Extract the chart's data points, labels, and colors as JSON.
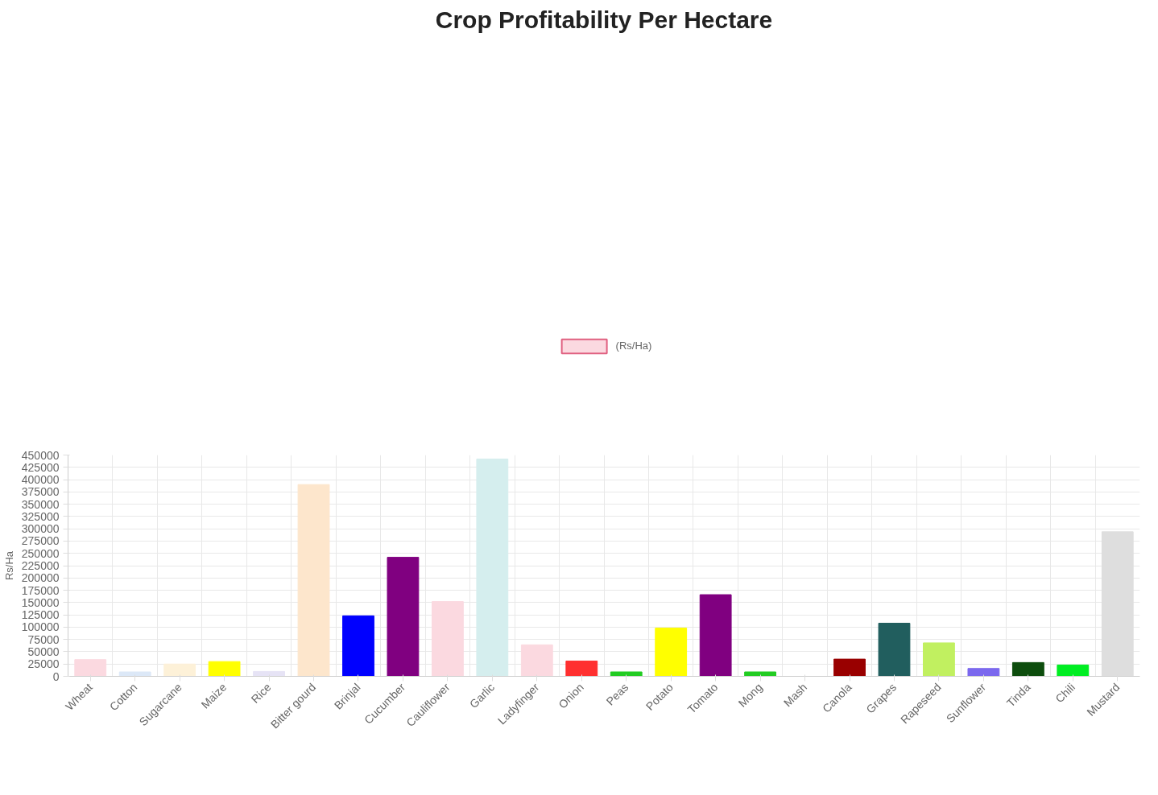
{
  "chart_data": {
    "type": "bar",
    "title": "Crop Profitability Per Hectare",
    "ylabel": "Rs/Ha",
    "categories": [
      "Wheat",
      "Cotton",
      "Sugarcane",
      "Maize",
      "Rice",
      "Bitter gourd",
      "Brinjal",
      "Cucumber",
      "Cauliflower",
      "Garlic",
      "Ladyfinger",
      "Onion",
      "Peas",
      "Potato",
      "Tomato",
      "Mong",
      "Mash",
      "Canola",
      "Grapes",
      "Rapeseed",
      "Sunflower",
      "Tinda",
      "Chili",
      "Mustard"
    ],
    "series": [
      {
        "name": "(Rs/Ha)",
        "values": [
          34000,
          9000,
          25000,
          30000,
          10000,
          390000,
          123000,
          242000,
          152000,
          442000,
          64000,
          31000,
          9000,
          98000,
          166000,
          9000,
          0,
          35000,
          108000,
          68000,
          16000,
          28000,
          23000,
          294000
        ],
        "colors": [
          "#fbd9e0",
          "#dce8f7",
          "#fdf1d8",
          "#ffff00",
          "#e6e3f5",
          "#fde6cc",
          "#0000ff",
          "#800080",
          "#fbd9e0",
          "#d5eeee",
          "#fbd9e0",
          "#ff3030",
          "#22cc22",
          "#ffff00",
          "#800080",
          "#22cc22",
          "#22cc22",
          "#990000",
          "#215e5e",
          "#c1f060",
          "#7b68ee",
          "#0d4d0d",
          "#00ee22",
          "#dedede"
        ]
      }
    ],
    "ylim": [
      0,
      450000
    ],
    "yticks": [
      0,
      25000,
      50000,
      75000,
      100000,
      125000,
      150000,
      175000,
      200000,
      225000,
      250000,
      275000,
      300000,
      325000,
      350000,
      375000,
      400000,
      425000,
      450000
    ],
    "grid": true,
    "legend": "top"
  }
}
